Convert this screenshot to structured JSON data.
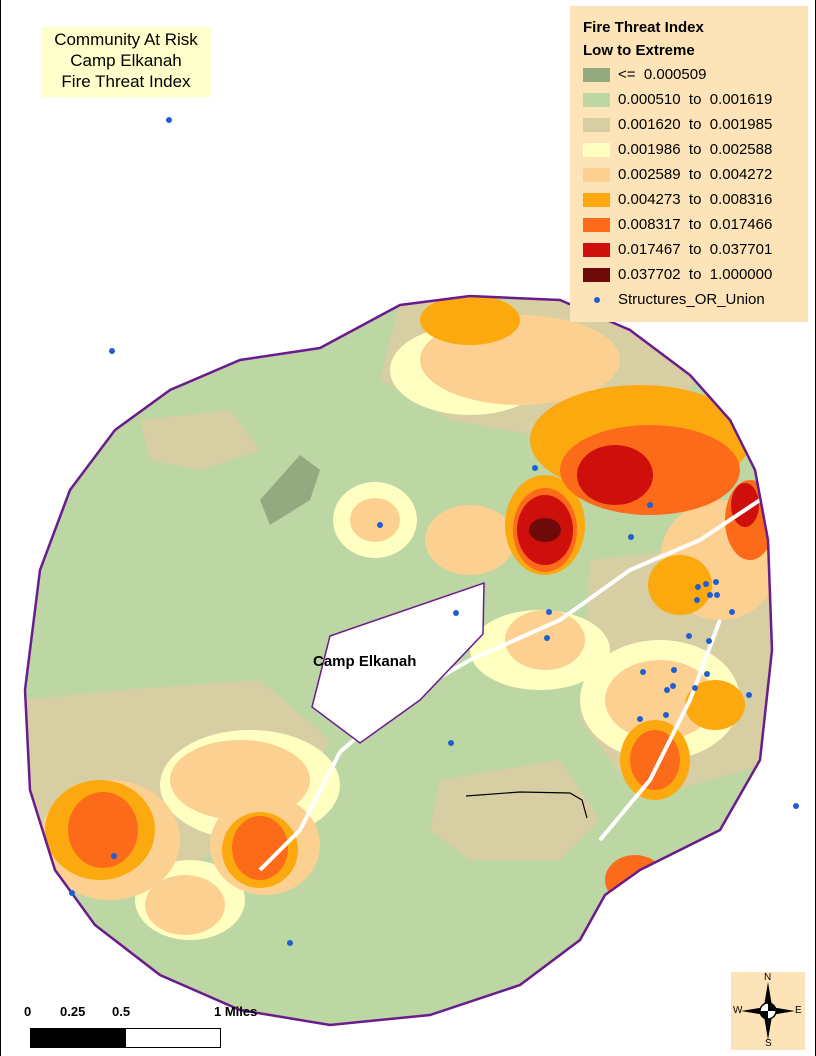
{
  "title": {
    "line1": "Community At Risk",
    "line2": "Camp Elkanah",
    "line3": "Fire Threat Index"
  },
  "legend": {
    "title1": "Fire Threat Index",
    "title2": "Low to Extreme",
    "classes": [
      {
        "label": "<=  0.000509",
        "color": "#93a97f"
      },
      {
        "label": "0.000510  to  0.001619",
        "color": "#bcd6a4"
      },
      {
        "label": "0.001620  to  0.001985",
        "color": "#d8cea3"
      },
      {
        "label": "0.001986  to  0.002588",
        "color": "#ffffc2"
      },
      {
        "label": "0.002589  to  0.004272",
        "color": "#fcd090"
      },
      {
        "label": "0.004273  to  0.008316",
        "color": "#fca90f"
      },
      {
        "label": "0.008317  to  0.017466",
        "color": "#fc6b1a"
      },
      {
        "label": "0.017467  to  0.037701",
        "color": "#cf0f0c"
      },
      {
        "label": "0.037702  to  1.000000",
        "color": "#6e0a0a"
      }
    ],
    "structures_label": "Structures_OR_Union",
    "structures_color": "#1f5fd1"
  },
  "place_label": "Camp Elkanah",
  "scalebar": {
    "labels": [
      "0",
      "0.25",
      "0.5",
      "1  Miles"
    ]
  },
  "compass": {
    "n": "N",
    "s": "S",
    "e": "E",
    "w": "W"
  },
  "colors": {
    "boundary": "#6a1b8c",
    "base": "#bcd6a4"
  }
}
